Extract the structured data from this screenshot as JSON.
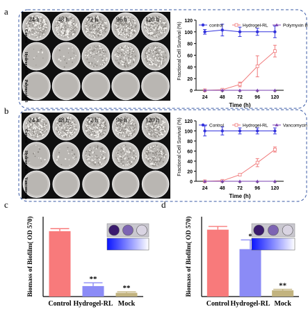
{
  "panels": {
    "a": {
      "letter": "a",
      "time_labels": [
        "24 h",
        "48 h",
        "72 h",
        "96 h",
        "120 h"
      ],
      "row_labels": [
        "Control",
        "Hydrogel-RL",
        "Polymyxin B"
      ],
      "growth": [
        [
          0.95,
          0.95,
          0.95,
          0.95,
          0.95
        ],
        [
          0.05,
          0.08,
          0.35,
          0.55,
          0.7
        ],
        [
          0,
          0,
          0,
          0,
          0
        ]
      ]
    },
    "b": {
      "letter": "b",
      "time_labels": [
        "24 h",
        "48 h",
        "72 h",
        "96 h",
        "120 h"
      ],
      "row_labels": [
        "Control",
        "Hydrogel-RL",
        "Vancomycin"
      ],
      "growth": [
        [
          0.95,
          0.95,
          0.95,
          0.95,
          0.95
        ],
        [
          0.05,
          0.08,
          0.3,
          0.5,
          0.65
        ],
        [
          0,
          0,
          0,
          0,
          0
        ]
      ]
    },
    "c": {
      "letter": "c",
      "wells": 3
    },
    "d": {
      "letter": "d",
      "wells": 3
    }
  },
  "chart_data": [
    {
      "id": "a-line",
      "type": "line",
      "xlabel": "Time (h)",
      "ylabel": "Fractional Cell Survival (%)",
      "x": [
        24,
        48,
        72,
        96,
        120
      ],
      "xticks": [
        24,
        48,
        72,
        96,
        120
      ],
      "ylim": [
        0,
        120
      ],
      "yticks": [
        0,
        20,
        40,
        60,
        80,
        100,
        120
      ],
      "legend_position": "top",
      "series": [
        {
          "name": "control",
          "color": "#3333dd",
          "values": [
            100,
            103,
            100,
            100,
            100
          ],
          "errors": [
            4,
            10,
            8,
            6,
            10
          ]
        },
        {
          "name": "Hydrogel-RL",
          "color": "#f0797a",
          "values": [
            0,
            1,
            10,
            41,
            67
          ],
          "errors": [
            0,
            1,
            4,
            18,
            10
          ]
        },
        {
          "name": "Polymyxin B",
          "color": "#7a3fb0",
          "values": [
            0,
            0,
            0,
            0,
            0
          ],
          "errors": [
            0,
            0,
            0,
            0,
            0
          ]
        }
      ]
    },
    {
      "id": "b-line",
      "type": "line",
      "xlabel": "Time (h)",
      "ylabel": "Fractional Cell Survival (%)",
      "x": [
        24,
        48,
        72,
        96,
        120
      ],
      "xticks": [
        24,
        48,
        72,
        96,
        120
      ],
      "ylim": [
        0,
        120
      ],
      "yticks": [
        0,
        20,
        40,
        60,
        80,
        100,
        120
      ],
      "legend_position": "top",
      "series": [
        {
          "name": "Control",
          "color": "#3333dd",
          "values": [
            100,
            100,
            100,
            100,
            100
          ],
          "errors": [
            10,
            8,
            6,
            6,
            6
          ]
        },
        {
          "name": "Hydrogel-RL",
          "color": "#f0797a",
          "values": [
            0,
            1,
            13,
            37,
            63
          ],
          "errors": [
            0,
            1,
            2,
            8,
            5
          ]
        },
        {
          "name": "Vancomycin",
          "color": "#7a3fb0",
          "values": [
            0,
            0,
            0,
            0,
            0
          ],
          "errors": [
            0,
            0,
            0,
            0,
            0
          ]
        }
      ]
    },
    {
      "id": "c-bar",
      "type": "bar",
      "ylabel": "Biomass of Biofilm( OD 570)",
      "categories": [
        "Control",
        "Hydrogel-RL",
        "Mock"
      ],
      "values": [
        2.62,
        0.42,
        0.15
      ],
      "errors": [
        0.1,
        0.13,
        0.04
      ],
      "colors": [
        "#f87a7b",
        "#8b8bf6",
        "#c2b37f"
      ],
      "annotations": [
        "",
        "**",
        "**"
      ],
      "ylim": [
        0,
        3.2
      ]
    },
    {
      "id": "d-bar",
      "type": "bar",
      "ylabel": "Biomass of Biofilm( OD 570)",
      "categories": [
        "Control",
        "Hydrogel-RL",
        "Mock"
      ],
      "values": [
        2.68,
        1.9,
        0.25
      ],
      "errors": [
        0.13,
        0.37,
        0.04
      ],
      "colors": [
        "#f87a7b",
        "#8b8bf6",
        "#c2b37f"
      ],
      "annotations": [
        "",
        "*",
        "**"
      ],
      "ylim": [
        0,
        3.2
      ]
    }
  ]
}
